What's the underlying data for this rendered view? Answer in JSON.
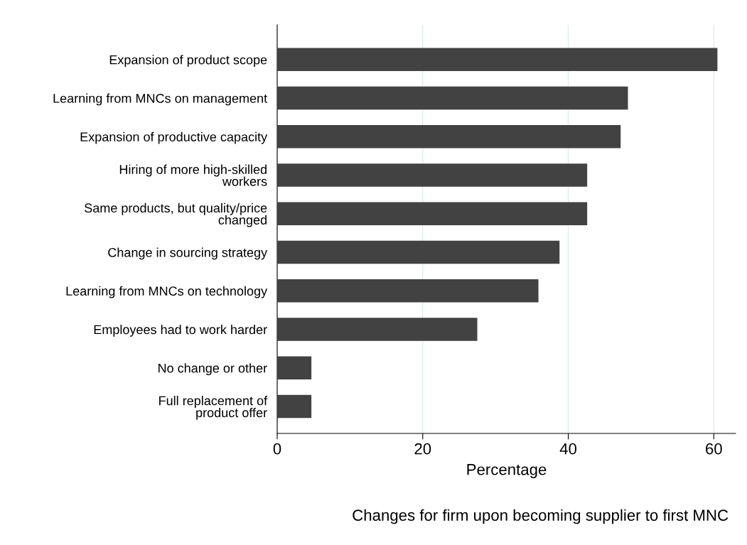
{
  "chart_data": {
    "type": "bar",
    "orientation": "horizontal",
    "categories": [
      "Expansion of product scope",
      "Learning from MNCs on management",
      "Expansion of productive capacity",
      "Hiring of more high-skilled\nworkers",
      "Same products, but quality/price\nchanged",
      "Change in sourcing strategy",
      "Learning from MNCs on technology",
      "Employees had to work harder",
      "No change or other",
      "Full replacement of\nproduct offer"
    ],
    "values": [
      60.5,
      48.2,
      47.2,
      42.6,
      42.6,
      38.8,
      35.9,
      27.5,
      4.7,
      4.7
    ],
    "color": "#424242",
    "xlim": [
      0,
      63
    ],
    "xticks": [
      0,
      20,
      40,
      60
    ],
    "grid": "x",
    "xlabel": "Percentage",
    "annotations": [
      "Changes for firm upon becoming supplier to first MNC"
    ]
  }
}
